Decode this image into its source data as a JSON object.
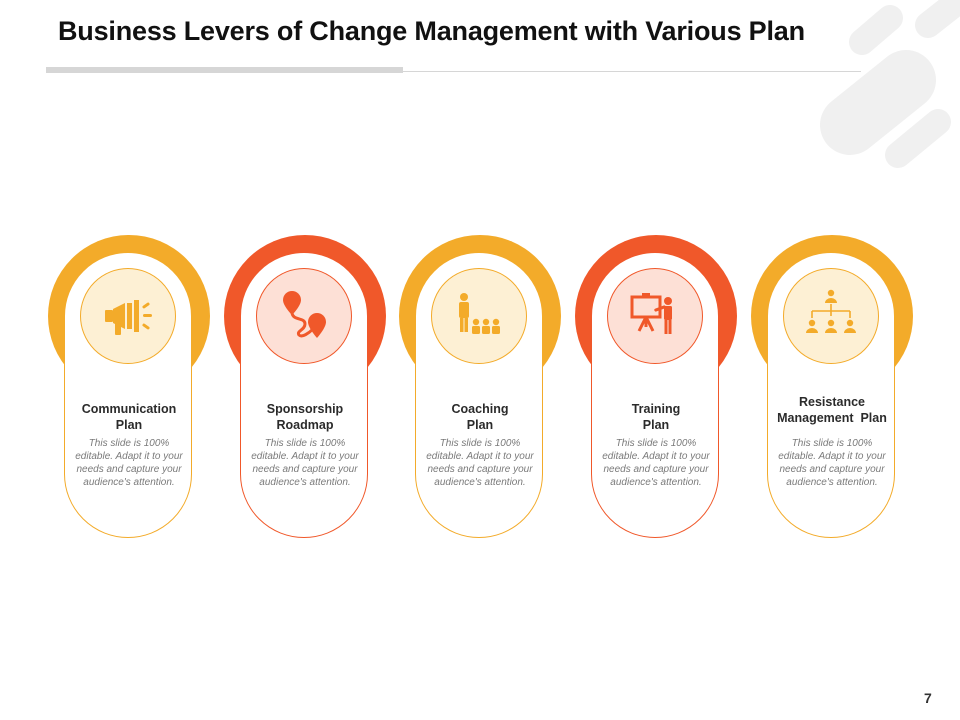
{
  "slide": {
    "title": "Business Levers of Change Management with Various Plan",
    "page_number": "7"
  },
  "colors": {
    "yellow": "#f3ab2a",
    "orange": "#f0582a",
    "deco_gray": "#f0f0f0"
  },
  "cards": [
    {
      "title_line1": "Communication",
      "title_line2": "Plan",
      "description": "This slide is 100% editable. Adapt it to your needs and capture your audience's attention.",
      "icon": "megaphone-icon",
      "accent": "yellow"
    },
    {
      "title_line1": "Sponsorship",
      "title_line2": "Roadmap",
      "description": "This slide is 100% editable. Adapt it to your needs and capture your audience's attention.",
      "icon": "roadmap-pins-icon",
      "accent": "orange"
    },
    {
      "title_line1": "Coaching",
      "title_line2": "Plan",
      "description": "This slide is 100% editable. Adapt it to your needs and capture your audience's attention.",
      "icon": "coach-audience-icon",
      "accent": "yellow"
    },
    {
      "title_line1": "Training",
      "title_line2": "Plan",
      "description": "This slide is 100% editable. Adapt it to your needs and capture your audience's attention.",
      "icon": "presentation-board-icon",
      "accent": "orange"
    },
    {
      "title_line1": "Resistance",
      "title_line2": "Management  Plan",
      "description": "This slide is 100% editable. Adapt it to your needs and capture your audience's attention.",
      "icon": "org-hierarchy-icon",
      "accent": "yellow"
    }
  ]
}
